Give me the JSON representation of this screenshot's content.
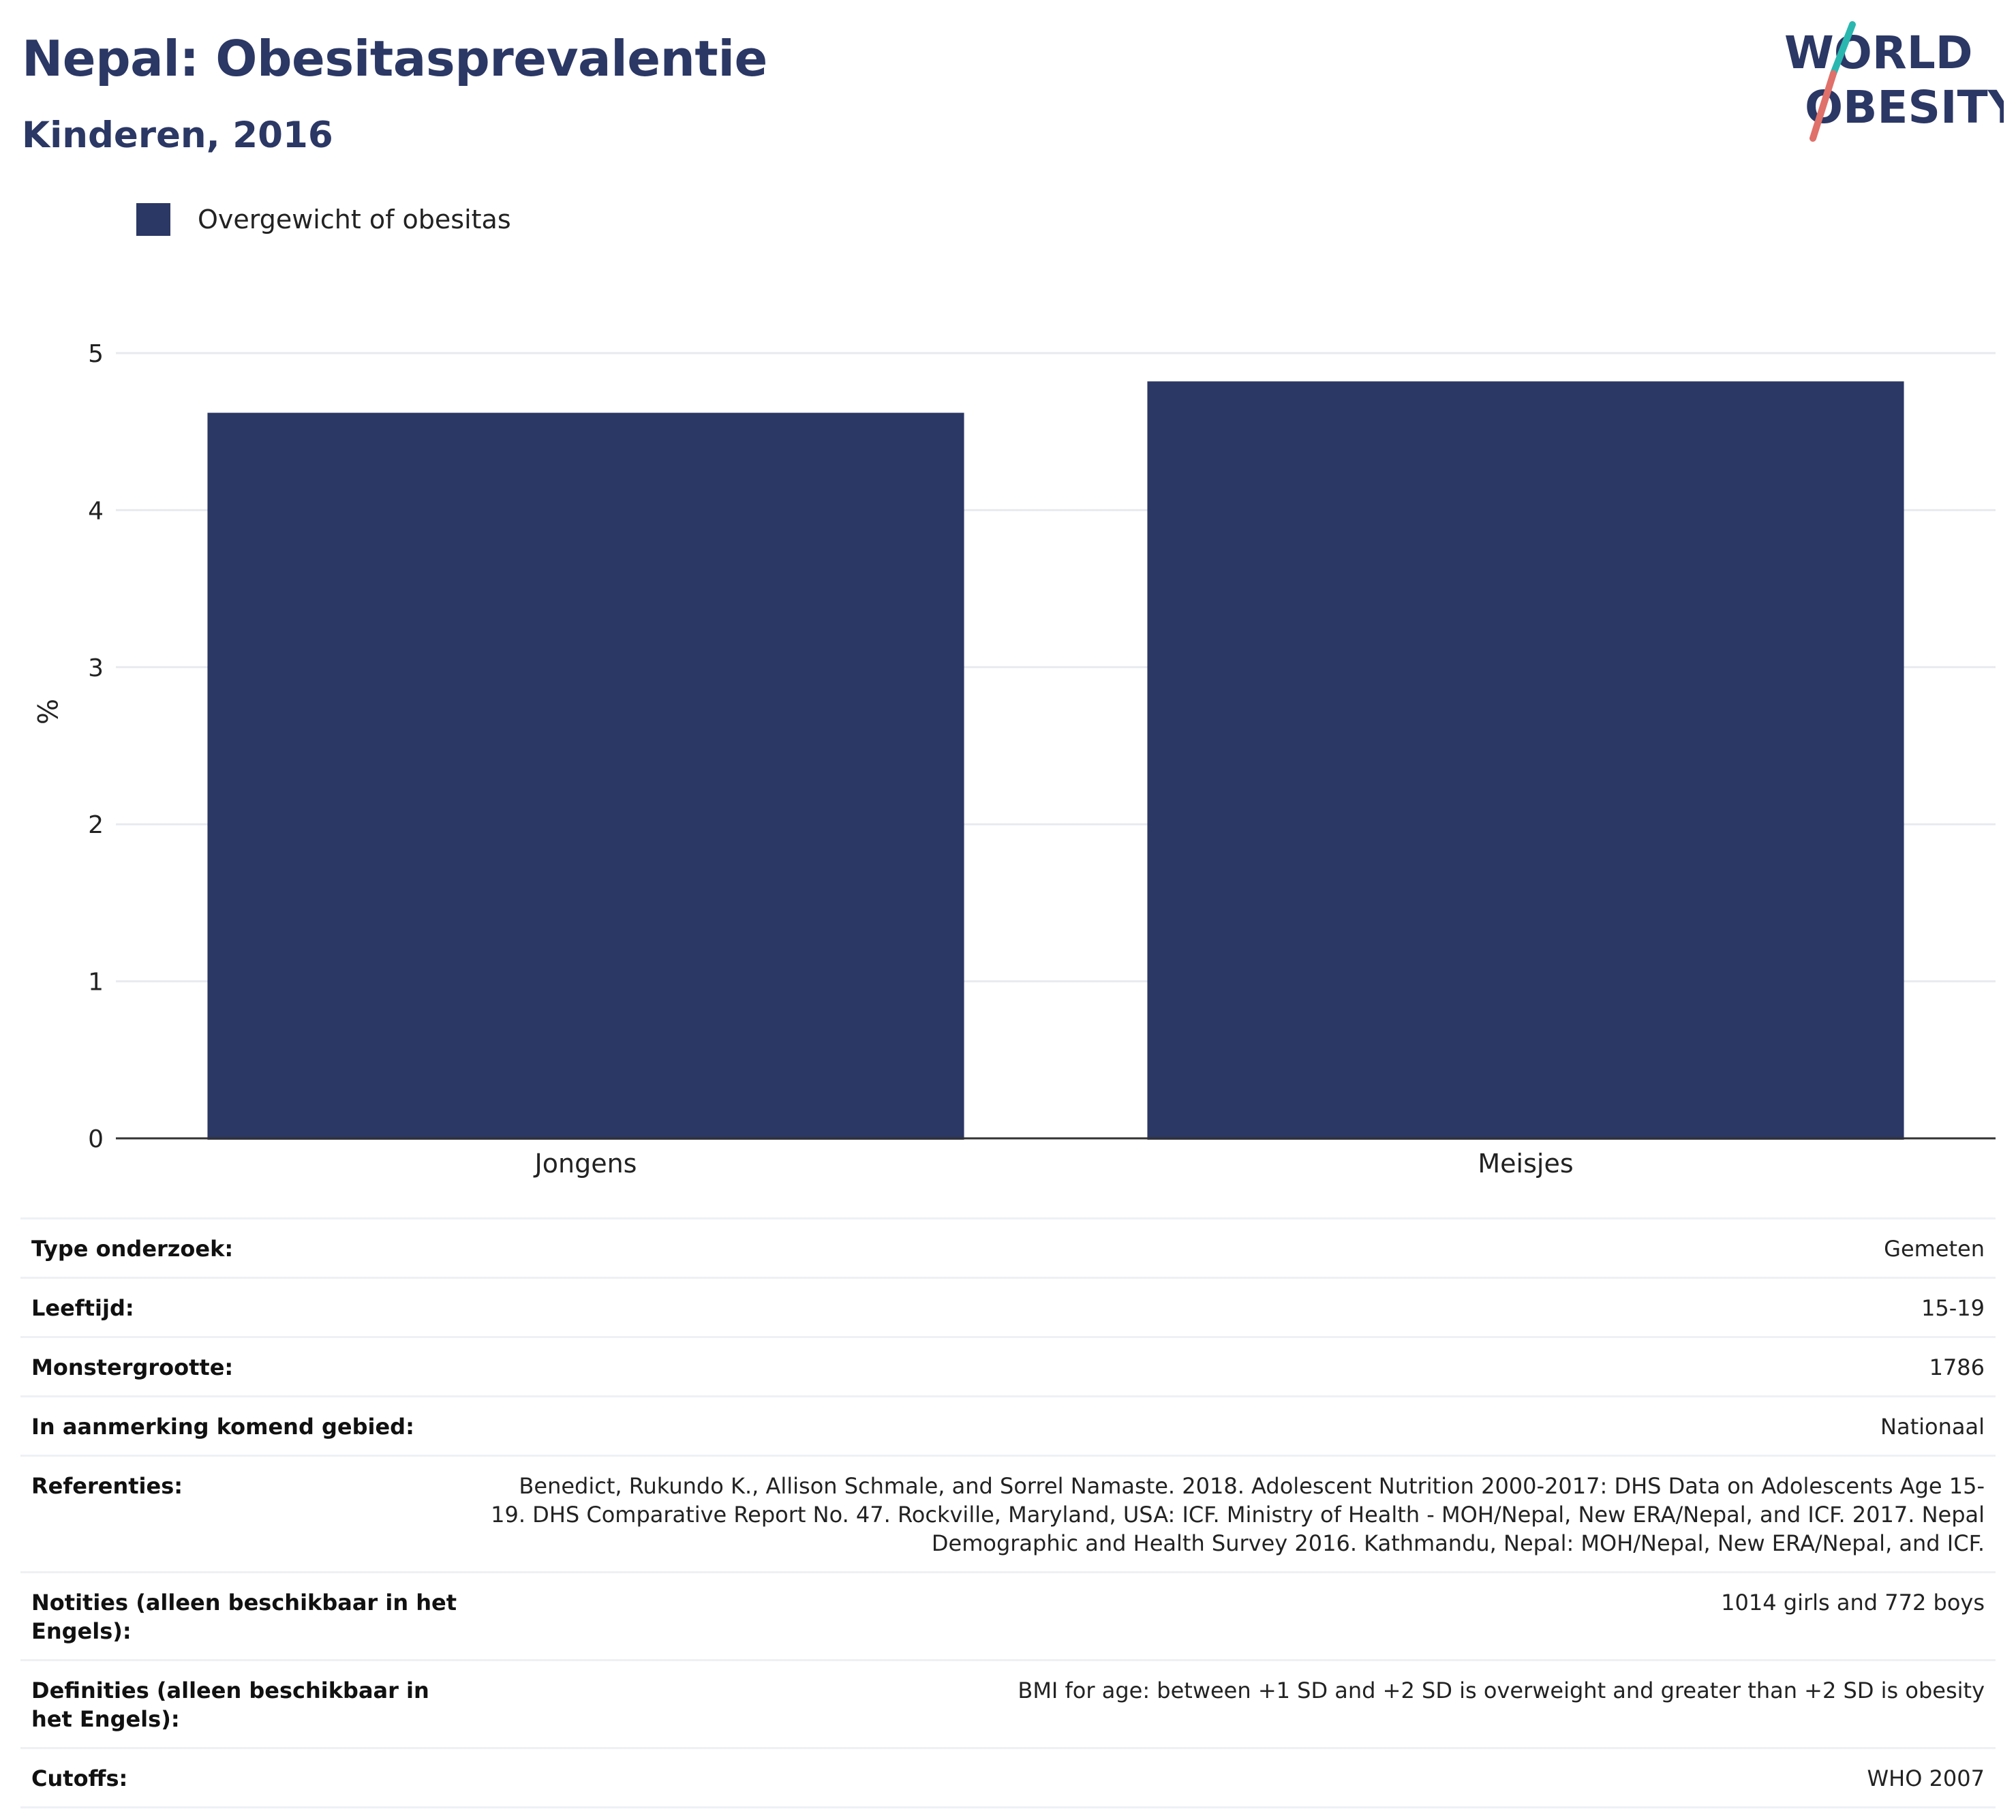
{
  "header": {
    "title": "Nepal: Obesitasprevalentie",
    "subtitle": "Kinderen, 2016"
  },
  "logo": {
    "line1": "WORLD",
    "line2": "OBESITY",
    "colors": {
      "text": "#2b3764",
      "slash_top": "#2ab7b0",
      "slash_bottom": "#e0706a"
    }
  },
  "legend": {
    "items": [
      {
        "label": "Overgewicht of obesitas",
        "color": "#2b3764"
      }
    ]
  },
  "chart_data": {
    "type": "bar",
    "categories": [
      "Jongens",
      "Meisjes"
    ],
    "series": [
      {
        "name": "Overgewicht of obesitas",
        "values": [
          4.62,
          4.82
        ],
        "color": "#2b3764"
      }
    ],
    "title": "Nepal: Obesitasprevalentie",
    "subtitle": "Kinderen, 2016",
    "xlabel": "",
    "ylabel": "%",
    "ylim": [
      0,
      5
    ],
    "yticks": [
      "0",
      "1",
      "2",
      "3",
      "4",
      "5"
    ],
    "grid": true,
    "legend_position": "top-left"
  },
  "info": {
    "rows": [
      {
        "label": "Type onderzoek:",
        "value": "Gemeten"
      },
      {
        "label": "Leeftijd:",
        "value": "15-19"
      },
      {
        "label": "Monstergrootte:",
        "value": "1786"
      },
      {
        "label": "In aanmerking komend gebied:",
        "value": "Nationaal"
      },
      {
        "label": "Referenties:",
        "value": "Benedict, Rukundo K., Allison Schmale, and Sorrel Namaste. 2018. Adolescent Nutrition 2000-2017: DHS Data on Adolescents Age 15-19. DHS Comparative Report No. 47. Rockville, Maryland, USA: ICF. Ministry of Health - MOH/Nepal, New ERA/Nepal, and ICF. 2017. Nepal Demographic and Health Survey 2016. Kathmandu, Nepal: MOH/Nepal, New ERA/Nepal, and ICF."
      },
      {
        "label": "Notities (alleen beschikbaar in het Engels):",
        "value": "1014 girls and 772 boys"
      },
      {
        "label": "Definities (alleen beschikbaar in het Engels):",
        "value": "BMI for age: between +1 SD and +2 SD is overweight and greater than +2 SD is obesity"
      },
      {
        "label": "Cutoffs:",
        "value": "WHO 2007"
      }
    ]
  }
}
